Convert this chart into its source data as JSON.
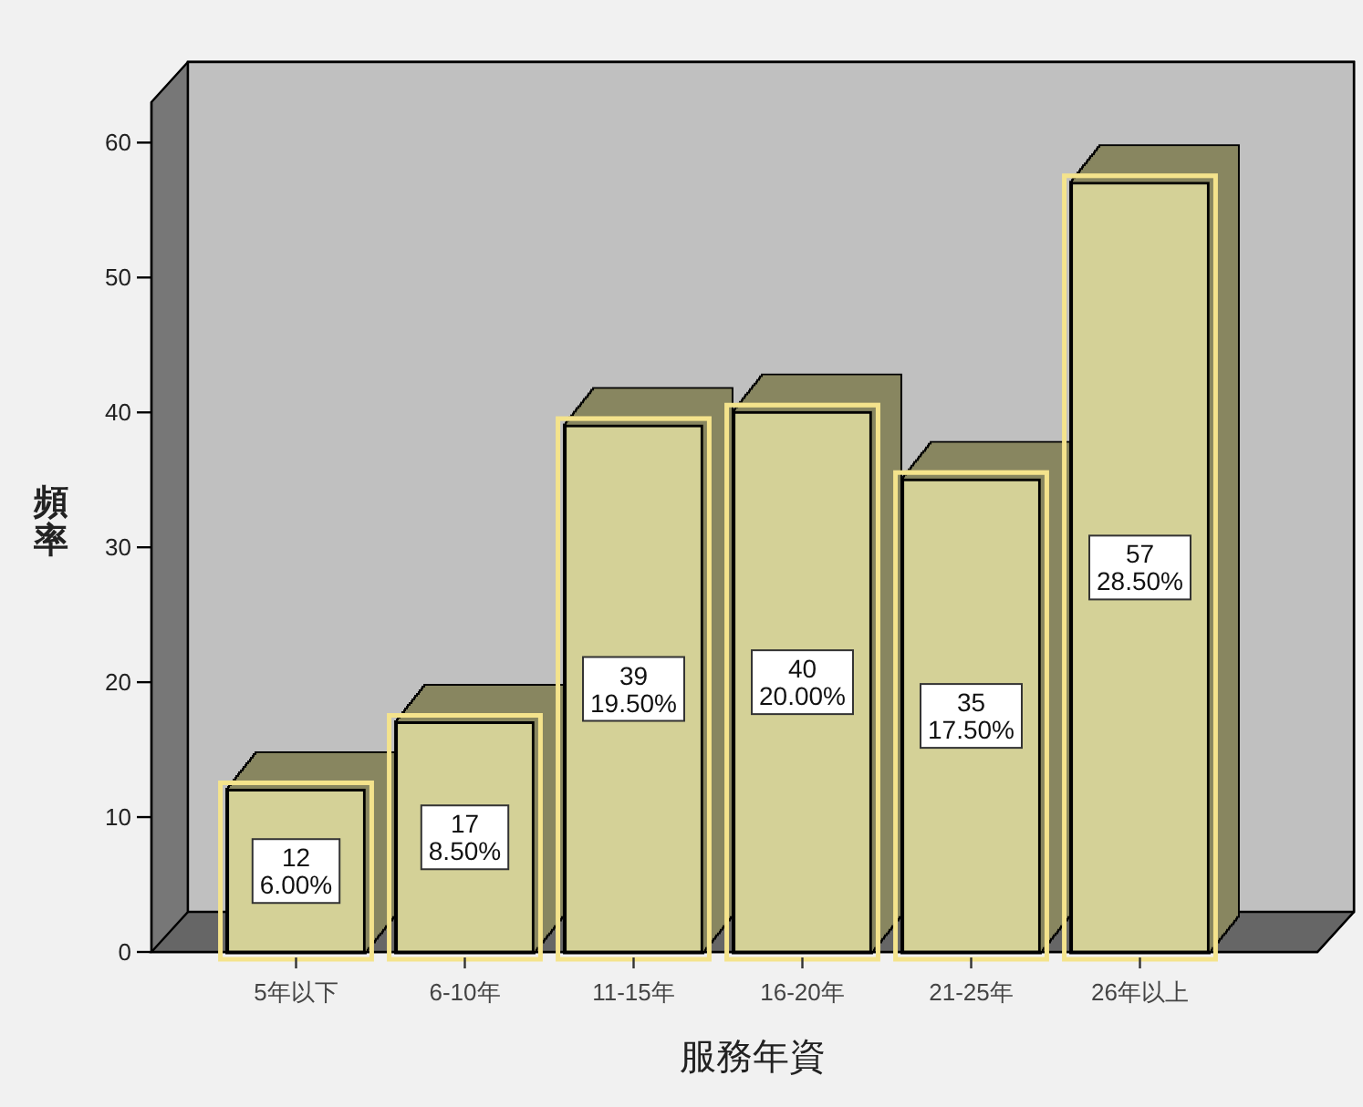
{
  "chart_data": {
    "type": "bar",
    "categories": [
      "5年以下",
      "6-10年",
      "11-15年",
      "16-20年",
      "21-25年",
      "26年以上"
    ],
    "values": [
      12,
      17,
      39,
      40,
      35,
      57
    ],
    "value_labels": [
      "12\n6.00%",
      "17\n8.50%",
      "39\n19.50%",
      "40\n20.00%",
      "35\n17.50%",
      "57\n28.50%"
    ],
    "color": "#d4d197",
    "xlabel": "服務年資",
    "ylabel": "頻率",
    "ylim": [
      0,
      63
    ],
    "yticks": [
      0,
      10,
      20,
      30,
      40,
      50,
      60
    ],
    "grid": false
  }
}
